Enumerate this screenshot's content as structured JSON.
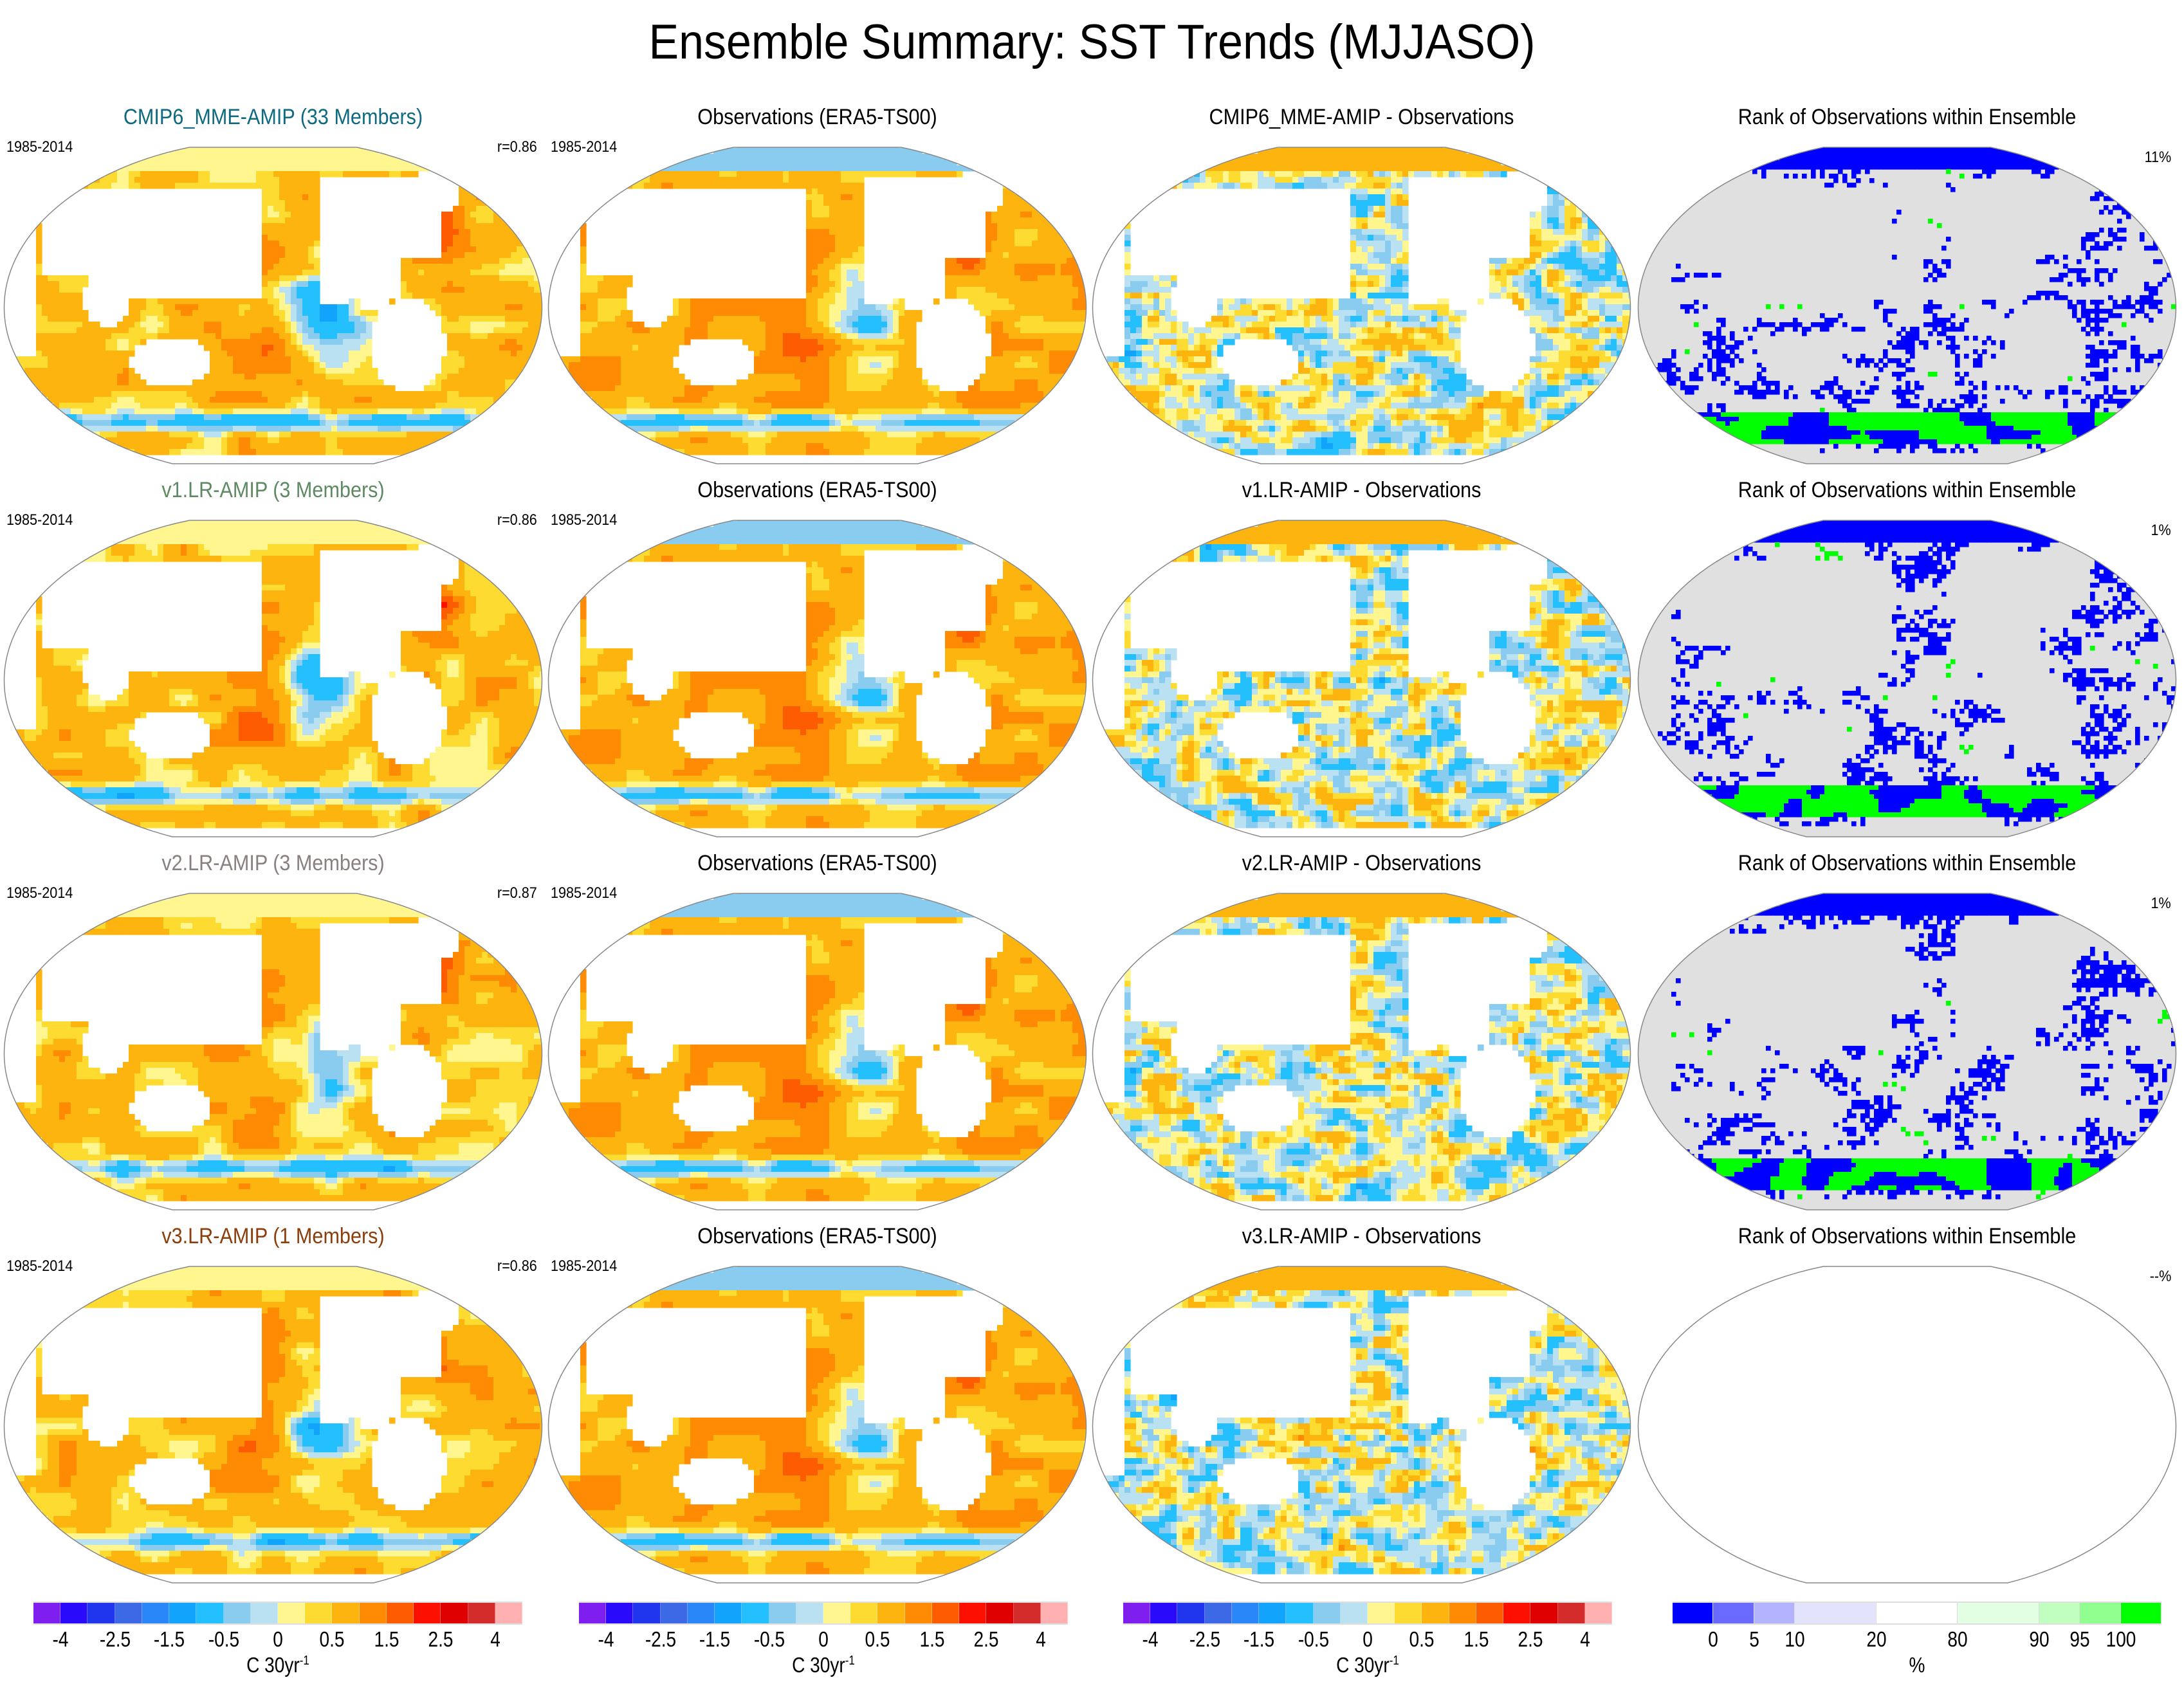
{
  "figure": {
    "title": "Ensemble Summary: SST Trends (MJJASO)"
  },
  "chart_data": {
    "type": "heatmap",
    "title": "Ensemble Summary: SST Trends (MJJASO)",
    "projection": "global map (Pacific-centered, elliptical)",
    "period": "1985-2014",
    "rows": [
      {
        "model": "CMIP6_MME-AMIP (33 Members)",
        "model_color": "#0e6a80",
        "period_label": "1985-2014",
        "pattern_corr": "r=0.86",
        "obs_title": "Observations (ERA5-TS00)",
        "obs_period_label": "1985-2014",
        "diff_title": "CMIP6_MME-AMIP - Observations",
        "rank_title": "Rank of Observations within Ensemble",
        "rank_pct": "11%",
        "rank_available": true
      },
      {
        "model": "v1.LR-AMIP (3 Members)",
        "model_color": "#5e8a63",
        "period_label": "1985-2014",
        "pattern_corr": "r=0.86",
        "obs_title": "Observations (ERA5-TS00)",
        "obs_period_label": "1985-2014",
        "diff_title": "v1.LR-AMIP - Observations",
        "rank_title": "Rank of Observations within Ensemble",
        "rank_pct": "1%",
        "rank_available": true
      },
      {
        "model": "v2.LR-AMIP (3 Members)",
        "model_color": "#8a8080",
        "period_label": "1985-2014",
        "pattern_corr": "r=0.87",
        "obs_title": "Observations (ERA5-TS00)",
        "obs_period_label": "1985-2014",
        "diff_title": "v2.LR-AMIP - Observations",
        "rank_title": "Rank of Observations within Ensemble",
        "rank_pct": "1%",
        "rank_available": true
      },
      {
        "model": "v3.LR-AMIP (1 Members)",
        "model_color": "#8b3e0c",
        "period_label": "1985-2014",
        "pattern_corr": "r=0.86",
        "obs_title": "Observations (ERA5-TS00)",
        "obs_period_label": "1985-2014",
        "diff_title": "v3.LR-AMIP - Observations",
        "rank_title": "Rank of Observations within Ensemble",
        "rank_pct": "--%",
        "rank_available": false
      }
    ],
    "trend_colorbar": {
      "unit": "C 30yr",
      "unit_exponent": "-1",
      "levels": [
        -4,
        -3,
        -2.5,
        -2,
        -1.5,
        -1,
        -0.5,
        -0.25,
        0,
        0.25,
        0.5,
        1,
        1.5,
        2,
        2.5,
        3,
        4
      ],
      "tick_labels": [
        "-4",
        "-2.5",
        "-1.5",
        "-0.5",
        "0",
        "0.5",
        "1.5",
        "2.5",
        "4"
      ],
      "tick_level_index": [
        0,
        2,
        4,
        6,
        8,
        10,
        12,
        14,
        16
      ],
      "colors": [
        "#7f1fef",
        "#2a0afa",
        "#1f36ee",
        "#3c6ae6",
        "#2a87f8",
        "#12a4fc",
        "#24bffd",
        "#89ccef",
        "#b9e1f2",
        "#fff68f",
        "#fedb31",
        "#feb40f",
        "#fe8b03",
        "#fe5c00",
        "#fd1000",
        "#df0000",
        "#d42b2b",
        "#ffb1b1"
      ]
    },
    "rank_colorbar": {
      "unit": "%",
      "tick_labels": [
        "0",
        "5",
        "10",
        "20",
        "80",
        "90",
        "95",
        "100"
      ],
      "bins": [
        {
          "color": "#0000ff",
          "weight": 1
        },
        {
          "color": "#6a6aff",
          "weight": 1
        },
        {
          "color": "#b3b3ff",
          "weight": 1
        },
        {
          "color": "#e3e3fc",
          "weight": 2
        },
        {
          "color": "#ffffff",
          "weight": 2
        },
        {
          "color": "#e3ffe3",
          "weight": 2
        },
        {
          "color": "#c0ffc0",
          "weight": 1
        },
        {
          "color": "#90ff90",
          "weight": 1
        },
        {
          "color": "#00ff00",
          "weight": 1
        }
      ],
      "tick_positions_units": [
        1,
        2,
        3,
        5,
        7,
        9,
        10,
        11
      ]
    }
  }
}
